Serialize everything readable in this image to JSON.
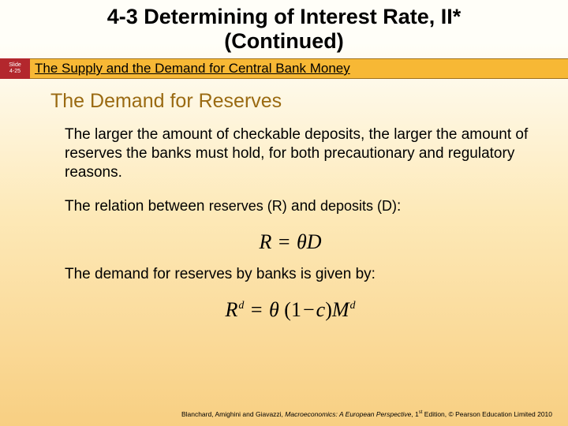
{
  "title": {
    "line1": "4-3 Determining of Interest Rate, II*",
    "line2": "(Continued)"
  },
  "slide_tag": {
    "label": "Slide",
    "number": "4-25"
  },
  "band_subtitle": "The Supply and the Demand for Central Bank Money",
  "section_heading": "The Demand for Reserves",
  "para1": "The larger the amount of checkable deposits, the larger the amount of reserves the banks must hold, for both precautionary and regulatory reasons.",
  "para2_pre": "The relation between ",
  "para2_mid1": "reserves (R)",
  "para2_mid2": " and ",
  "para2_mid3": "deposits (D)",
  "para2_post": ":",
  "para3": "The demand for reserves by banks is given by:",
  "eq1": {
    "R": "R",
    "eq": "=",
    "theta": "θ",
    "D": "D"
  },
  "eq2": {
    "R": "R",
    "sup_d1": "d",
    "eq": "=",
    "theta": "θ",
    "lp": "(",
    "one": "1",
    "minus": "−",
    "c": "c",
    "rp": ")",
    "M": "M",
    "sup_d2": "d"
  },
  "footer": {
    "authors": "Blanchard, Amighini and Giavazzi, ",
    "book": "Macroeconomics: A European Perspective",
    "sep": ", 1",
    "st": "st",
    "tail": " Edition, © Pearson Education Limited 2010"
  },
  "colors": {
    "band_bg": "#f7b835",
    "tag_bg": "#b3272d",
    "heading": "#9a6a12"
  }
}
